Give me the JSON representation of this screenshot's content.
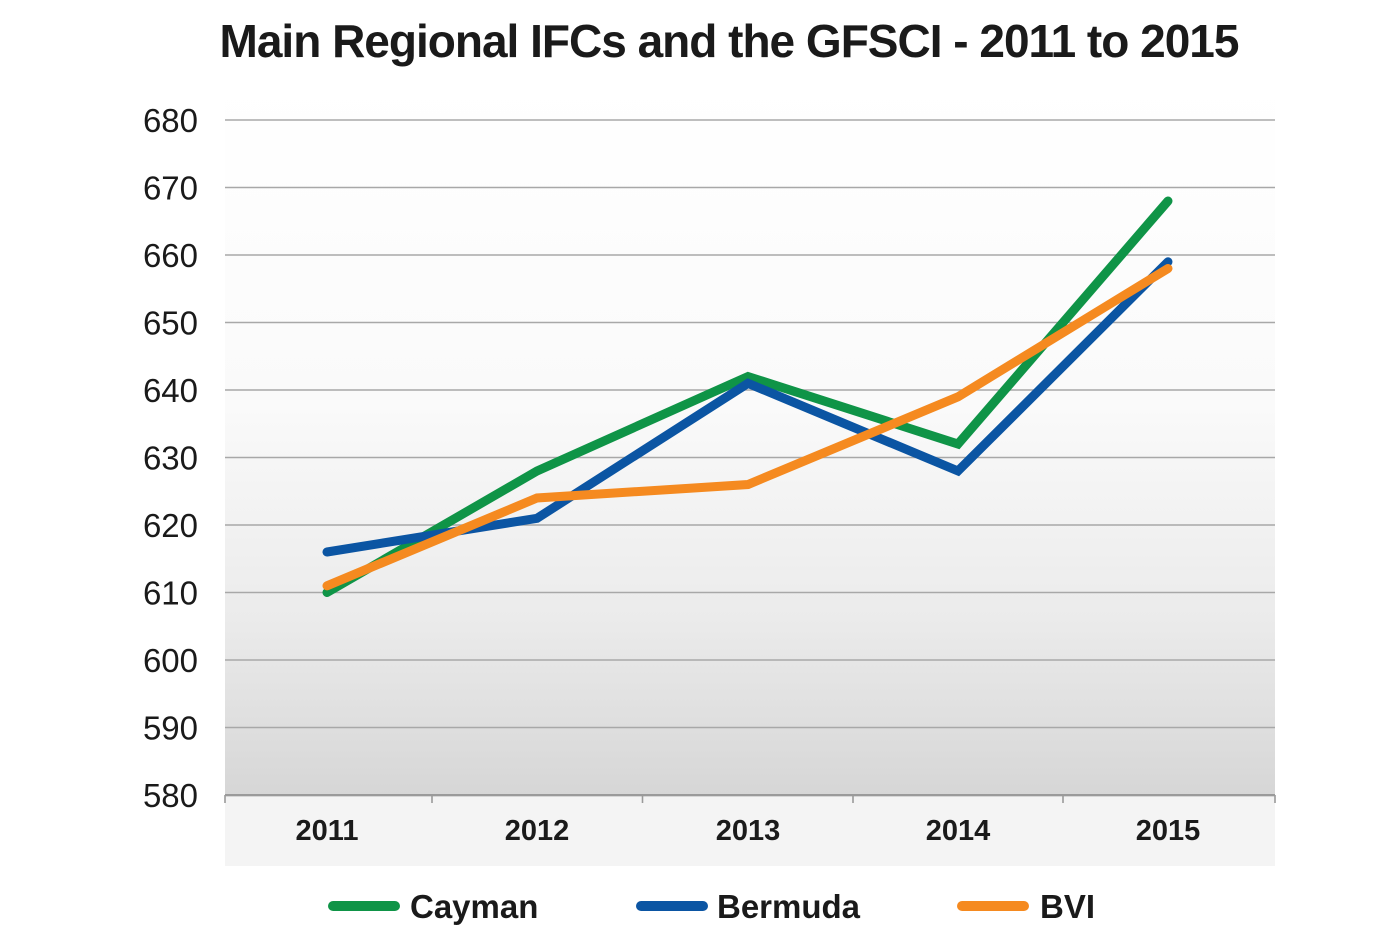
{
  "chart_data": {
    "type": "line",
    "title": "Main Regional IFCs and the GFSCI - 2011 to 2015",
    "xlabel": "",
    "ylabel": "",
    "categories": [
      "2011",
      "2012",
      "2013",
      "2014",
      "2015"
    ],
    "y_ticks": [
      "580",
      "590",
      "600",
      "610",
      "620",
      "630",
      "640",
      "650",
      "660",
      "670",
      "680"
    ],
    "ylim": [
      580,
      680
    ],
    "grid": true,
    "legend_position": "bottom",
    "series": [
      {
        "name": "Cayman",
        "color": "#0f9447",
        "values": [
          610,
          628,
          642,
          632,
          668
        ]
      },
      {
        "name": "Bermuda",
        "color": "#0b55a3",
        "values": [
          616,
          621,
          641,
          628,
          659
        ]
      },
      {
        "name": "BVI",
        "color": "#f58a20",
        "values": [
          611,
          624,
          626,
          639,
          658
        ]
      }
    ]
  }
}
